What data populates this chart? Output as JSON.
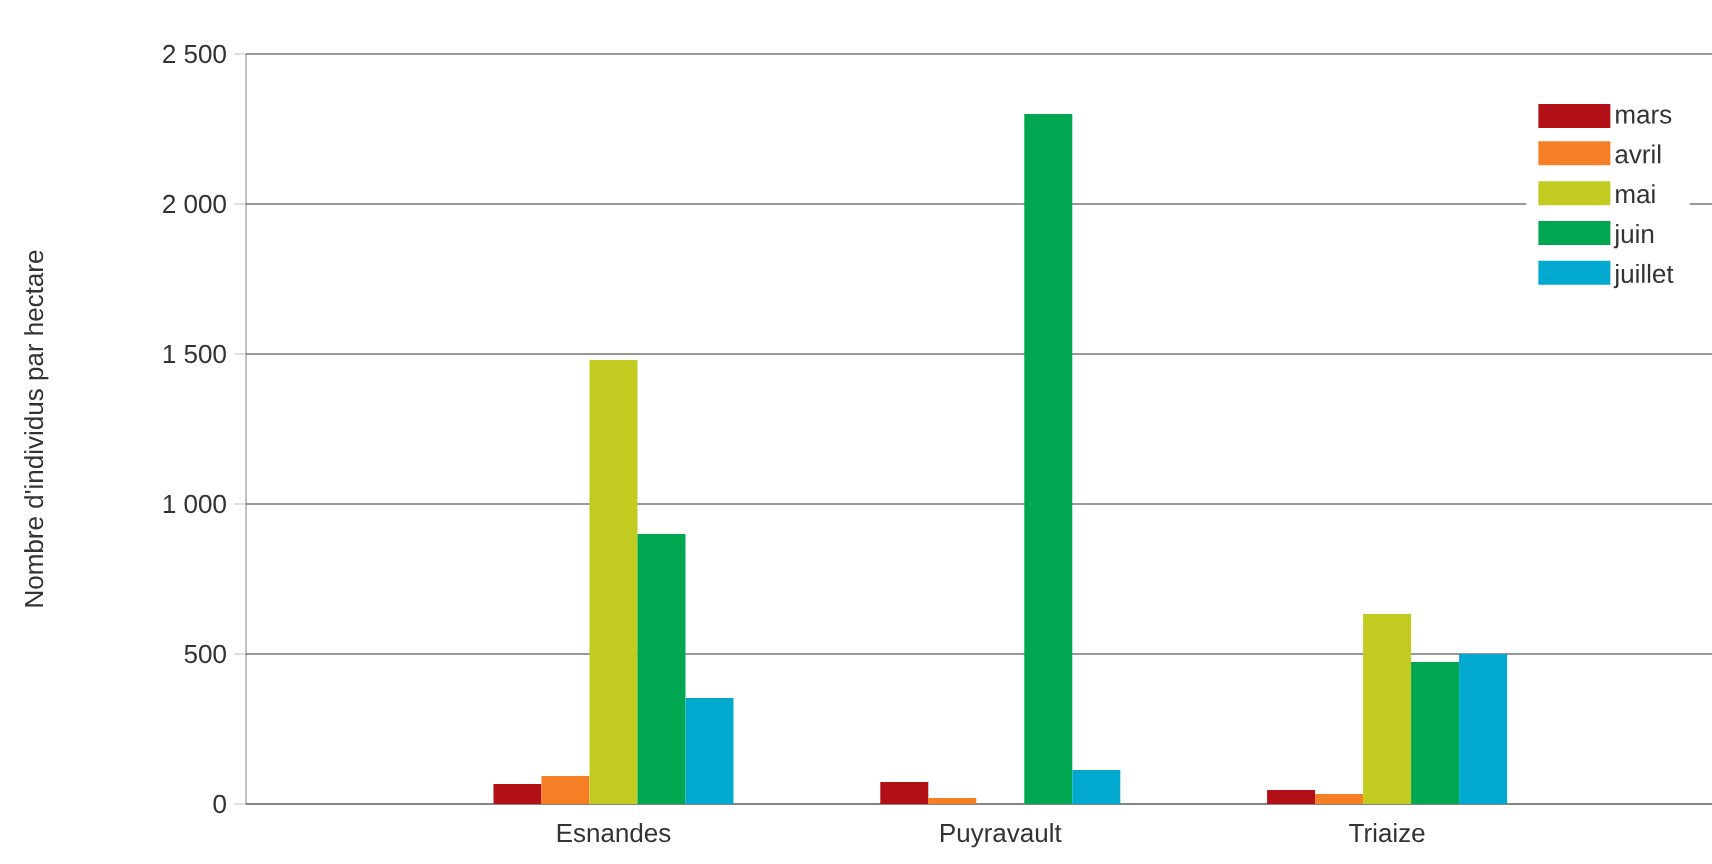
{
  "chart_data": {
    "type": "bar",
    "ylabel": "Nombre d'individus par hectare",
    "categories": [
      "Esnandes",
      "Puyravault",
      "Triaize"
    ],
    "series": [
      {
        "name": "mars",
        "color": "#b11116",
        "values": [
          67,
          73,
          47
        ]
      },
      {
        "name": "avril",
        "color": "#f47f24",
        "values": [
          93,
          20,
          33
        ]
      },
      {
        "name": "mai",
        "color": "#c2cb1f",
        "values": [
          1480,
          0,
          633
        ]
      },
      {
        "name": "juin",
        "color": "#00a650",
        "values": [
          900,
          2300,
          473
        ]
      },
      {
        "name": "juillet",
        "color": "#00a9cd",
        "values": [
          353,
          113,
          500
        ]
      }
    ],
    "ylim": [
      0,
      2500
    ],
    "yticks": [
      0,
      500,
      {
        "value": 1000,
        "label": "1 000"
      },
      {
        "value": 1500,
        "label": "1 500"
      },
      {
        "value": 2000,
        "label": "2 000"
      },
      {
        "value": 2500,
        "label": "2 500"
      }
    ],
    "grid": "y",
    "legend": "top right"
  }
}
